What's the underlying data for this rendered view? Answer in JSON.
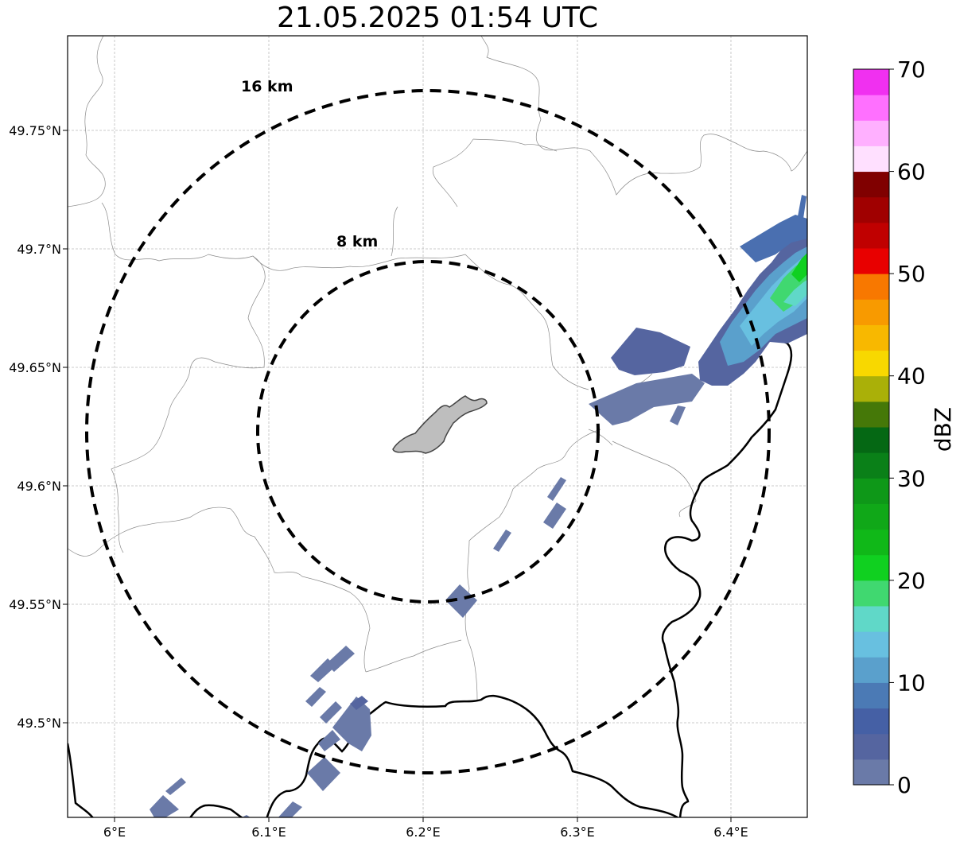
{
  "title": "21.05.2025 01:54 UTC",
  "lon_ticks": [
    "6°E",
    "6.1°E",
    "6.2°E",
    "6.3°E",
    "6.4°E"
  ],
  "lat_ticks": [
    "49.75°N",
    "49.7°N",
    "49.65°N",
    "49.6°N",
    "49.55°N",
    "49.5°N"
  ],
  "rings": [
    {
      "label": "16 km",
      "radius_km": 16
    },
    {
      "label": "8 km",
      "radius_km": 8
    }
  ],
  "colorbar": {
    "label": "dBZ",
    "ticks": [
      "0",
      "10",
      "20",
      "30",
      "40",
      "50",
      "60",
      "70"
    ],
    "colors": [
      "#6a7aa8",
      "#5565a0",
      "#4560a5",
      "#4b7ab5",
      "#5aa0cc",
      "#68c0e0",
      "#60d8c8",
      "#40d870",
      "#10d020",
      "#10b818",
      "#10a818",
      "#0e9818",
      "#0a8018",
      "#056814",
      "#457808",
      "#aab008",
      "#f8d800",
      "#f8b800",
      "#f89a00",
      "#f87800",
      "#e80000",
      "#c00000",
      "#a00000",
      "#800000",
      "#ffe0ff",
      "#ffb0ff",
      "#ff70ff",
      "#f030f0"
    ]
  },
  "map_colors": {
    "radar_site": "#bebebe",
    "border": "#000000",
    "grid": "#bbbbbb"
  }
}
